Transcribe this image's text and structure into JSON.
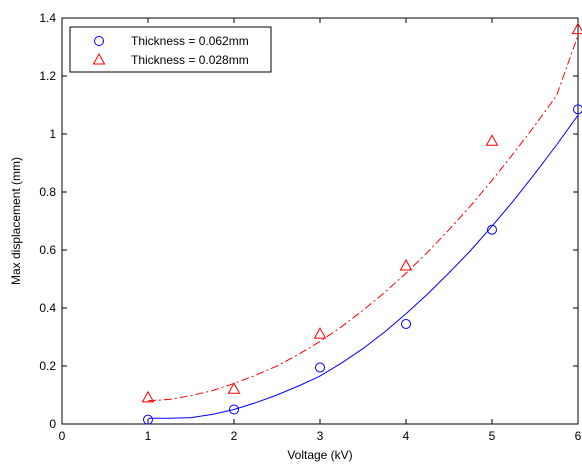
{
  "chart_data": {
    "type": "scatter",
    "xlabel": "Voltage (kV)",
    "ylabel": "Max displacement (mm)",
    "xlim": [
      0,
      6
    ],
    "ylim": [
      0,
      1.4
    ],
    "x_ticks": [
      "0",
      "1",
      "2",
      "3",
      "4",
      "5",
      "6"
    ],
    "y_ticks": [
      "0",
      "0.2",
      "0.4",
      "0.6",
      "0.8",
      "1",
      "1.2",
      "1.4"
    ],
    "grid": false,
    "legend_position": "top-left",
    "series": [
      {
        "name": "Thickness = 0.062mm",
        "marker": "circle",
        "color": "#0000ff",
        "x": [
          1,
          2,
          3,
          4,
          5,
          6
        ],
        "y": [
          0.015,
          0.05,
          0.195,
          0.345,
          0.67,
          1.085
        ],
        "fit": {
          "style": "solid",
          "x": [
            1,
            1.25,
            1.5,
            1.75,
            2,
            2.25,
            2.5,
            2.75,
            3,
            3.25,
            3.5,
            3.75,
            4,
            4.25,
            4.5,
            4.75,
            5,
            5.25,
            5.5,
            5.75,
            6
          ],
          "y": [
            0.02,
            0.02,
            0.022,
            0.033,
            0.05,
            0.073,
            0.1,
            0.131,
            0.165,
            0.21,
            0.26,
            0.317,
            0.38,
            0.448,
            0.521,
            0.598,
            0.682,
            0.77,
            0.864,
            0.962,
            1.065
          ]
        }
      },
      {
        "name": "Thickness = 0.028mm",
        "marker": "triangle",
        "color": "#ff0000",
        "x": [
          1,
          2,
          3,
          4,
          5,
          6
        ],
        "y": [
          0.09,
          0.12,
          0.31,
          0.545,
          0.975,
          1.36
        ],
        "fit": {
          "style": "dashdot",
          "x": [
            1,
            1.25,
            1.5,
            1.75,
            2,
            2.25,
            2.5,
            2.75,
            3,
            3.25,
            3.5,
            3.75,
            4,
            4.25,
            4.5,
            4.75,
            5,
            5.25,
            5.5,
            5.75,
            6
          ],
          "y": [
            0.08,
            0.085,
            0.098,
            0.115,
            0.14,
            0.168,
            0.2,
            0.24,
            0.285,
            0.335,
            0.392,
            0.453,
            0.52,
            0.592,
            0.67,
            0.752,
            0.84,
            0.933,
            1.03,
            1.132,
            1.34
          ]
        }
      }
    ]
  }
}
